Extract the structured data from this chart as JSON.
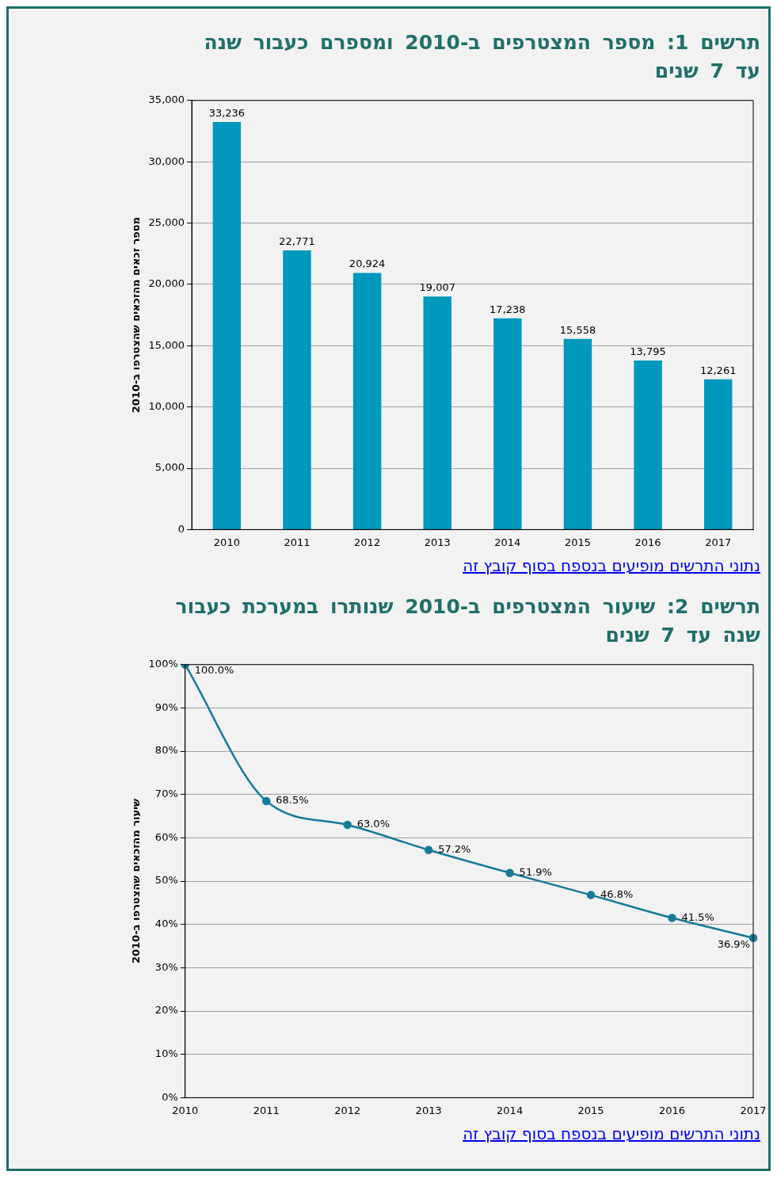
{
  "chart_data": [
    {
      "type": "bar",
      "title": "תרשים 1: מספר המצטרפים ב-2010 ומספרם כעבור שנה עד 7 שנים",
      "ylabel": "מספר זכאים מהזכאים שהצטרפו ב-2010",
      "categories": [
        "2010",
        "2011",
        "2012",
        "2013",
        "2014",
        "2015",
        "2016",
        "2017"
      ],
      "values": [
        33236,
        22771,
        20924,
        19007,
        17238,
        15558,
        13795,
        12261
      ],
      "color": "#0098bd",
      "value_labels": [
        "33,236",
        "22,771",
        "20,924",
        "19,007",
        "17,238",
        "15,558",
        "13,795",
        "12,261"
      ],
      "ylim": [
        0,
        35000
      ],
      "yticks": [
        0,
        {
          "value": 5000,
          "label": "5,000"
        },
        {
          "value": 10000,
          "label": "10,000"
        },
        {
          "value": 15000,
          "label": "15,000"
        },
        {
          "value": 20000,
          "label": "20,000"
        },
        {
          "value": 25000,
          "label": "25,000"
        },
        {
          "value": 30000,
          "label": "30,000"
        },
        {
          "value": 35000,
          "label": "35,000"
        }
      ],
      "grid": "y",
      "legend": false,
      "annotations": [
        "נתוני התרשים מופיעים בנספח בסוף קובץ זה"
      ]
    },
    {
      "type": "line",
      "title": "תרשים 2: שיעור המצטרפים ב-2010 שנותרו במערכת כעבור שנה עד 7 שנים",
      "ylabel": "שיעור מהזכאים שהצטרפו ב-2010",
      "categories": [
        "2010",
        "2011",
        "2012",
        "2013",
        "2014",
        "2015",
        "2016",
        "2017"
      ],
      "values": [
        100,
        68.5,
        63.0,
        57.2,
        51.9,
        46.8,
        41.5,
        36.9
      ],
      "value_labels": [
        "100.0%",
        "68.5%",
        "63.0%",
        "57.2%",
        "51.9%",
        "46.8%",
        "41.5%",
        "36.9%"
      ],
      "color": "#167a9a",
      "marker": "circle",
      "line_style": "solid",
      "ylim": [
        0,
        100
      ],
      "yticks": [
        {
          "value": 0,
          "label": "0%"
        },
        {
          "value": 10,
          "label": "10%"
        },
        {
          "value": 20,
          "label": "20%"
        },
        {
          "value": 30,
          "label": "30%"
        },
        {
          "value": 40,
          "label": "40%"
        },
        {
          "value": 50,
          "label": "50%"
        },
        {
          "value": 60,
          "label": "60%"
        },
        {
          "value": 70,
          "label": "70%"
        },
        {
          "value": 80,
          "label": "80%"
        },
        {
          "value": 90,
          "label": "90%"
        },
        {
          "value": 100,
          "label": "100%"
        }
      ],
      "grid": "y",
      "legend": false,
      "annotations": [
        "נתוני התרשים מופיעים בנספח בסוף קובץ זה"
      ]
    }
  ]
}
